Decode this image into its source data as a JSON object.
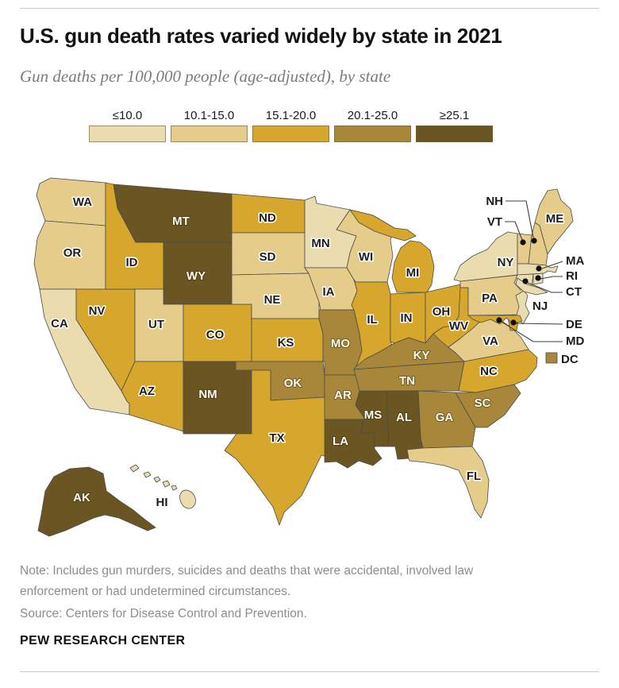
{
  "header": {
    "title": "U.S. gun death rates varied widely by state in 2021",
    "subtitle": "Gun deaths per 100,000 people (age-adjusted), by state"
  },
  "legend": {
    "bins": [
      {
        "label": "≤10.0",
        "color": "#ebdcb0"
      },
      {
        "label": "10.1-15.0",
        "color": "#e5cc8b"
      },
      {
        "label": "15.1-20.0",
        "color": "#d7a62d"
      },
      {
        "label": "20.1-25.0",
        "color": "#a8873b"
      },
      {
        "label": "≥25.1",
        "color": "#6b5522"
      }
    ]
  },
  "map": {
    "callouts": [
      "NH",
      "VT",
      "MA",
      "RI",
      "CT",
      "NJ",
      "DE",
      "MD",
      "DC"
    ]
  },
  "footer": {
    "note": "Note: Includes gun murders, suicides and deaths that were accidental, involved law enforcement or had undetermined circumstances.",
    "source": "Source: Centers for Disease Control and Prevention.",
    "brand": "PEW RESEARCH CENTER"
  },
  "chart_data": {
    "type": "heatmap",
    "variant": "us-state-choropleth",
    "title": "U.S. gun death rates varied widely by state in 2021",
    "unit": "Gun deaths per 100,000 people (age-adjusted)",
    "bins": [
      "≤10.0",
      "10.1-15.0",
      "15.1-20.0",
      "20.1-25.0",
      "≥25.1"
    ],
    "legend_position": "top",
    "states": {
      "WA": "10.1-15.0",
      "OR": "10.1-15.0",
      "CA": "≤10.0",
      "NV": "15.1-20.0",
      "ID": "15.1-20.0",
      "MT": "≥25.1",
      "WY": "≥25.1",
      "UT": "10.1-15.0",
      "CO": "15.1-20.0",
      "AZ": "15.1-20.0",
      "NM": "≥25.1",
      "ND": "15.1-20.0",
      "SD": "10.1-15.0",
      "NE": "10.1-15.0",
      "KS": "15.1-20.0",
      "OK": "20.1-25.0",
      "TX": "15.1-20.0",
      "MN": "≤10.0",
      "IA": "10.1-15.0",
      "MO": "20.1-25.0",
      "AR": "20.1-25.0",
      "LA": "≥25.1",
      "WI": "10.1-15.0",
      "IL": "15.1-20.0",
      "MS": "≥25.1",
      "MI": "15.1-20.0",
      "IN": "15.1-20.0",
      "OH": "15.1-20.0",
      "KY": "20.1-25.0",
      "TN": "20.1-25.0",
      "WV": "15.1-20.0",
      "VA": "10.1-15.0",
      "NC": "15.1-20.0",
      "SC": "20.1-25.0",
      "GA": "20.1-25.0",
      "AL": "≥25.1",
      "FL": "10.1-15.0",
      "PA": "10.1-15.0",
      "NY": "≤10.0",
      "NJ": "≤10.0",
      "VT": "10.1-15.0",
      "NH": "10.1-15.0",
      "ME": "10.1-15.0",
      "MA": "≤10.0",
      "RI": "≤10.0",
      "CT": "≤10.0",
      "DE": "15.1-20.0",
      "MD": "15.1-20.0",
      "AK": "≥25.1",
      "HI": "≤10.0",
      "DC": "20.1-25.0"
    }
  }
}
